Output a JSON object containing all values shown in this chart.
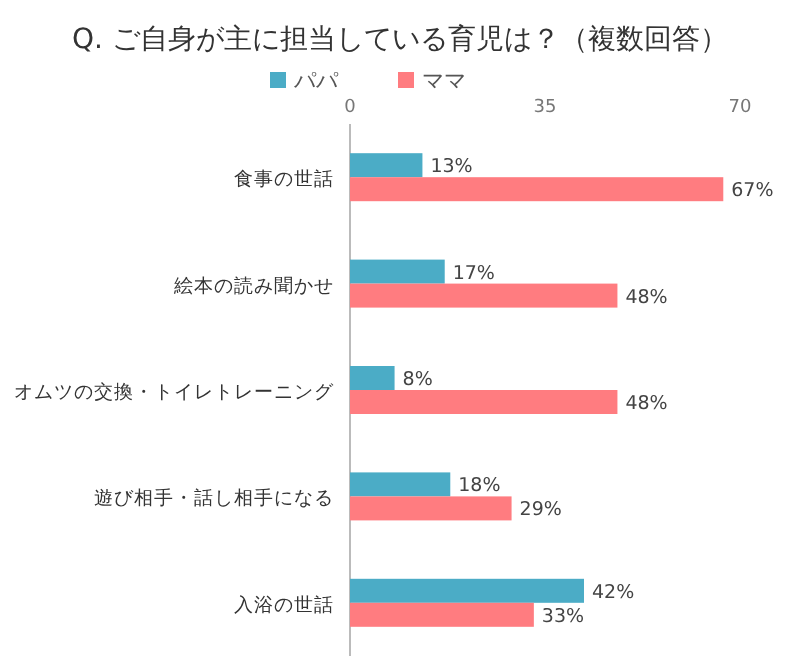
{
  "chart_data": {
    "type": "bar",
    "orientation": "horizontal",
    "title": "Q. ご自身が主に担当している育児は？（複数回答）",
    "categories": [
      "食事の世話",
      "絵本の読み聞かせ",
      "オムツの交換・トイレトレーニング",
      "遊び相手・話し相手になる",
      "入浴の世話"
    ],
    "series": [
      {
        "name": "パパ",
        "color": "#4bacc6",
        "values": [
          13,
          17,
          8,
          18,
          42
        ],
        "value_labels": [
          "13%",
          "17%",
          "8%",
          "18%",
          "42%"
        ]
      },
      {
        "name": "ママ",
        "color": "#ff7c80",
        "values": [
          67,
          48,
          48,
          29,
          33
        ],
        "value_labels": [
          "67%",
          "48%",
          "48%",
          "29%",
          "33%"
        ]
      }
    ],
    "xlim": [
      0,
      70
    ],
    "xticks": [
      0,
      35,
      70
    ],
    "legend": "top"
  }
}
